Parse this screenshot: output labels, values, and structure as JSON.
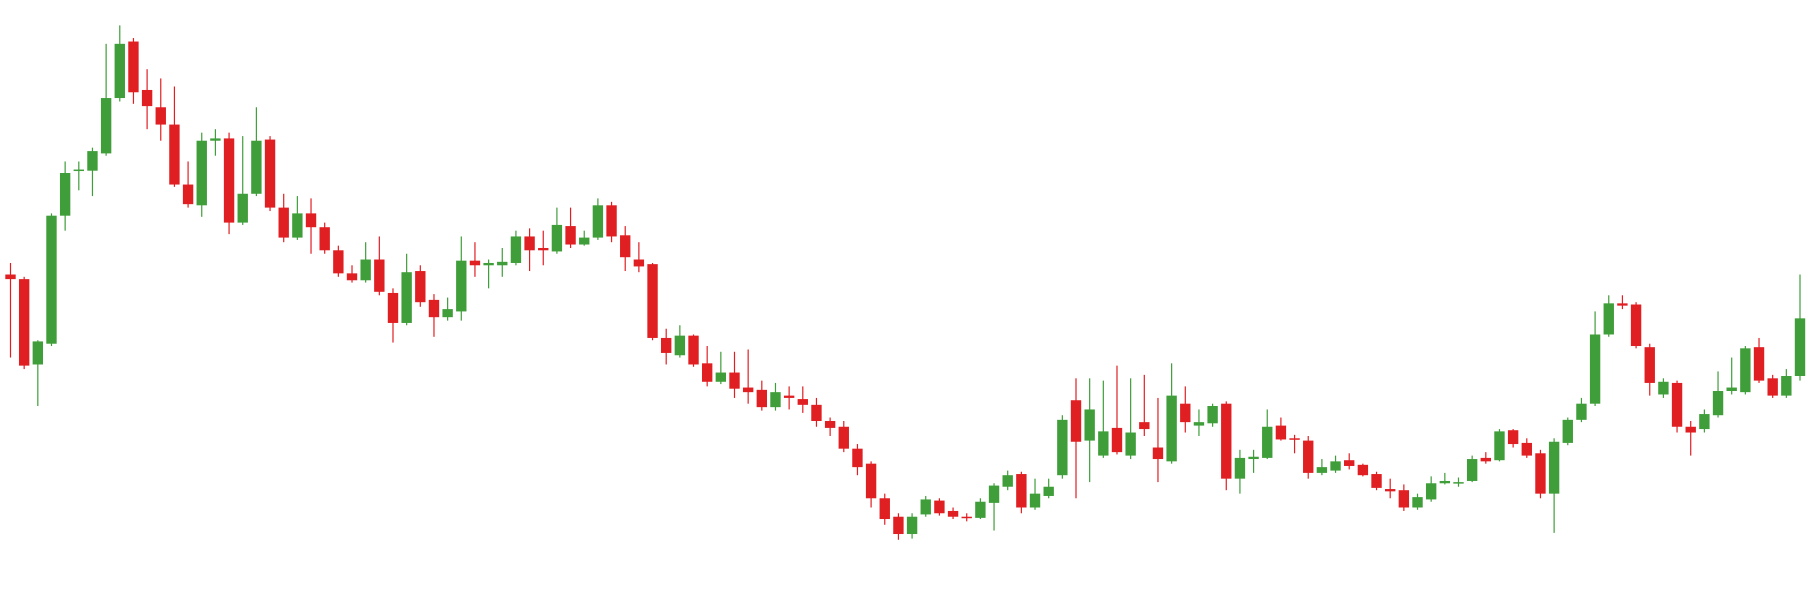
{
  "chart_data": {
    "type": "candlestick",
    "up_color": "#3f9e3a",
    "down_color": "#e01f23",
    "ylim": [
      85,
      600
    ],
    "open": [
      362,
      358,
      284,
      302,
      413,
      452,
      452,
      467,
      515,
      564,
      522,
      507,
      492,
      440,
      422,
      478,
      480,
      407,
      432,
      479,
      420,
      394,
      415,
      403,
      383,
      363,
      357,
      375,
      346,
      320,
      365,
      340,
      325,
      330,
      374,
      370,
      370,
      372,
      395,
      385,
      382,
      404,
      388,
      394,
      422,
      396,
      375,
      371,
      307,
      292,
      309,
      285,
      269,
      277,
      264,
      262,
      247,
      257,
      254,
      249,
      235,
      230,
      211,
      198,
      168,
      152,
      137,
      154,
      166,
      157,
      152,
      151,
      164,
      178,
      189,
      160,
      170,
      188,
      253,
      218,
      205,
      229,
      205,
      234,
      212,
      200,
      250,
      231,
      233,
      250,
      185,
      202,
      203,
      231,
      220,
      218,
      190,
      192,
      201,
      197,
      189,
      176,
      175,
      160,
      167,
      181,
      181,
      183,
      203,
      201,
      227,
      216,
      207,
      172,
      216,
      236,
      250,
      310,
      337,
      336,
      299,
      258,
      268,
      230,
      228,
      240,
      261,
      260,
      299,
      272,
      257,
      274
    ],
    "high": [
      372,
      360,
      305,
      415,
      460,
      460,
      472,
      562,
      578,
      567,
      540,
      532,
      525,
      460,
      485,
      488,
      485,
      482,
      507,
      482,
      432,
      430,
      428,
      407,
      387,
      370,
      390,
      395,
      350,
      380,
      370,
      345,
      342,
      395,
      390,
      375,
      385,
      400,
      402,
      400,
      420,
      420,
      400,
      428,
      425,
      404,
      390,
      372,
      315,
      318,
      310,
      300,
      295,
      295,
      297,
      270,
      268,
      265,
      265,
      255,
      238,
      235,
      215,
      200,
      172,
      155,
      155,
      170,
      168,
      160,
      155,
      168,
      181,
      192,
      191,
      185,
      185,
      240,
      272,
      272,
      270,
      283,
      272,
      275,
      255,
      285,
      265,
      245,
      250,
      252,
      210,
      210,
      245,
      238,
      223,
      222,
      202,
      205,
      207,
      198,
      191,
      185,
      180,
      172,
      187,
      190,
      186,
      205,
      208,
      228,
      228,
      220,
      210,
      220,
      238,
      255,
      330,
      344,
      344,
      338,
      302,
      272,
      270,
      235,
      245,
      278,
      290,
      300,
      307,
      275,
      280,
      362
    ],
    "low": [
      290,
      280,
      248,
      300,
      400,
      435,
      430,
      465,
      512,
      510,
      488,
      478,
      438,
      420,
      412,
      465,
      397,
      405,
      430,
      417,
      390,
      392,
      380,
      380,
      360,
      355,
      355,
      344,
      303,
      318,
      334,
      308,
      322,
      322,
      360,
      350,
      360,
      370,
      365,
      370,
      380,
      385,
      387,
      392,
      390,
      365,
      364,
      305,
      284,
      290,
      282,
      265,
      267,
      255,
      250,
      244,
      244,
      245,
      242,
      230,
      222,
      208,
      188,
      160,
      145,
      132,
      133,
      152,
      153,
      150,
      148,
      150,
      140,
      175,
      155,
      158,
      168,
      185,
      168,
      182,
      203,
      206,
      202,
      222,
      182,
      198,
      225,
      222,
      230,
      175,
      172,
      190,
      202,
      218,
      207,
      185,
      188,
      190,
      193,
      187,
      175,
      168,
      157,
      158,
      165,
      180,
      178,
      182,
      198,
      200,
      212,
      203,
      168,
      138,
      214,
      234,
      248,
      308,
      332,
      298,
      257,
      255,
      225,
      205,
      225,
      238,
      258,
      258,
      268,
      255,
      255,
      270
    ],
    "close": [
      358,
      283,
      304,
      413,
      450,
      453,
      469,
      515,
      562,
      520,
      508,
      492,
      440,
      423,
      478,
      480,
      407,
      432,
      478,
      420,
      394,
      415,
      403,
      383,
      363,
      357,
      375,
      347,
      320,
      364,
      338,
      325,
      332,
      374,
      370,
      372,
      373,
      395,
      383,
      383,
      405,
      388,
      394,
      422,
      395,
      377,
      369,
      307,
      294,
      309,
      284,
      269,
      277,
      263,
      260,
      247,
      260,
      255,
      249,
      235,
      229,
      211,
      195,
      168,
      150,
      137,
      152,
      167,
      155,
      152,
      151,
      165,
      179,
      188,
      160,
      172,
      178,
      236,
      217,
      245,
      226,
      208,
      225,
      228,
      202,
      257,
      234,
      234,
      248,
      185,
      203,
      204,
      230,
      219,
      219,
      190,
      195,
      200,
      196,
      188,
      177,
      174,
      160,
      169,
      181,
      183,
      182,
      202,
      200,
      226,
      215,
      205,
      172,
      217,
      236,
      250,
      310,
      337,
      335,
      300,
      268,
      269,
      230,
      225,
      241,
      261,
      264,
      298,
      270,
      257,
      274,
      324
    ]
  }
}
